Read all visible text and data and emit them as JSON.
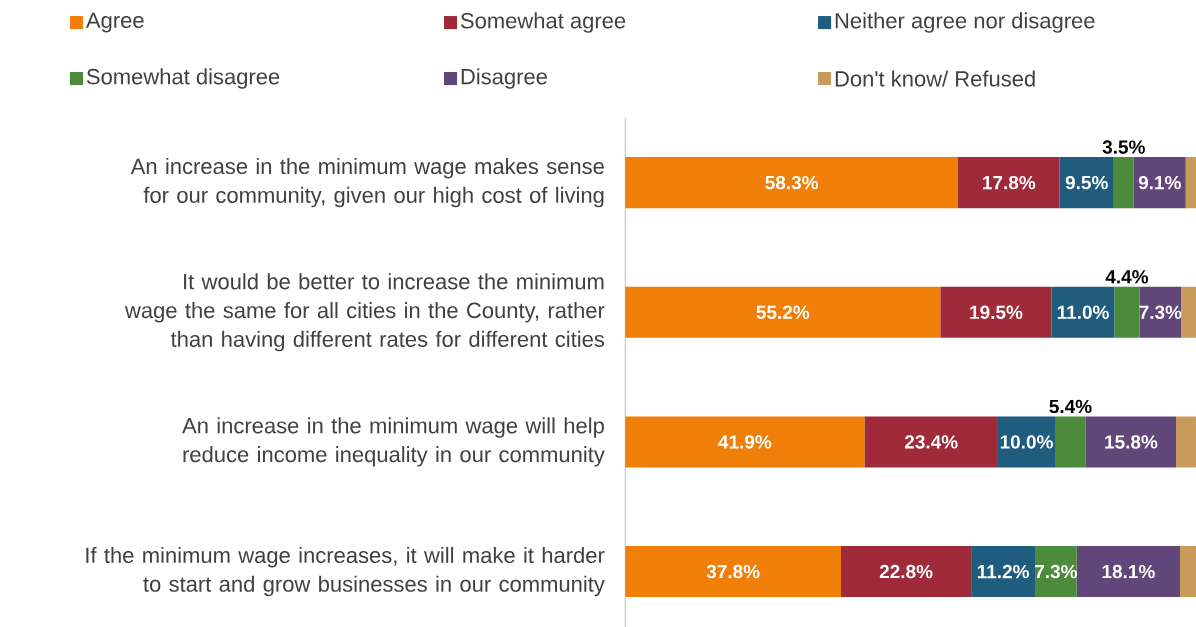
{
  "chart_data": {
    "type": "bar",
    "orientation": "horizontal",
    "stacked": true,
    "legend": "top",
    "categories": [
      "An increase in the minimum wage makes sense for our community, given our high cost of living",
      "It would be better to increase the minimum wage the same for all cities in the County, rather than having different rates for different cities",
      "An increase in the minimum wage will help reduce income inequality in our community",
      "If the minimum wage increases, it will make it harder to start and grow businesses in our community"
    ],
    "series": [
      {
        "name": "Agree",
        "color": "#f07f09",
        "values": [
          58.3,
          55.2,
          41.9,
          37.8
        ],
        "value_labels": [
          "58.3%",
          "55.2%",
          "41.9%",
          "37.8%"
        ]
      },
      {
        "name": "Somewhat agree",
        "color": "#9e2a3a",
        "values": [
          17.8,
          19.5,
          23.4,
          22.8
        ],
        "value_labels": [
          "17.8%",
          "19.5%",
          "23.4%",
          "22.8%"
        ]
      },
      {
        "name": "Neither agree nor disagree",
        "color": "#1f5c7e",
        "values": [
          9.5,
          11.0,
          10.0,
          11.2
        ],
        "value_labels": [
          "9.5%",
          "11.0%",
          "10.0%",
          "11.2%"
        ]
      },
      {
        "name": "Somewhat disagree",
        "color": "#4c8a3c",
        "values": [
          3.5,
          4.4,
          5.4,
          7.3
        ],
        "value_labels": [
          "3.5%",
          "4.4%",
          "5.4%",
          "7.3%"
        ]
      },
      {
        "name": "Disagree",
        "color": "#61467a",
        "values": [
          9.1,
          7.3,
          15.8,
          18.1
        ],
        "value_labels": [
          "9.1%",
          "7.3%",
          "15.8%",
          "18.1%"
        ]
      },
      {
        "name": "Don't know/ Refused",
        "color": "#c99b5a",
        "values": [
          1.8,
          2.6,
          3.5,
          2.8
        ],
        "value_labels": [
          null,
          null,
          null,
          null
        ]
      }
    ]
  }
}
